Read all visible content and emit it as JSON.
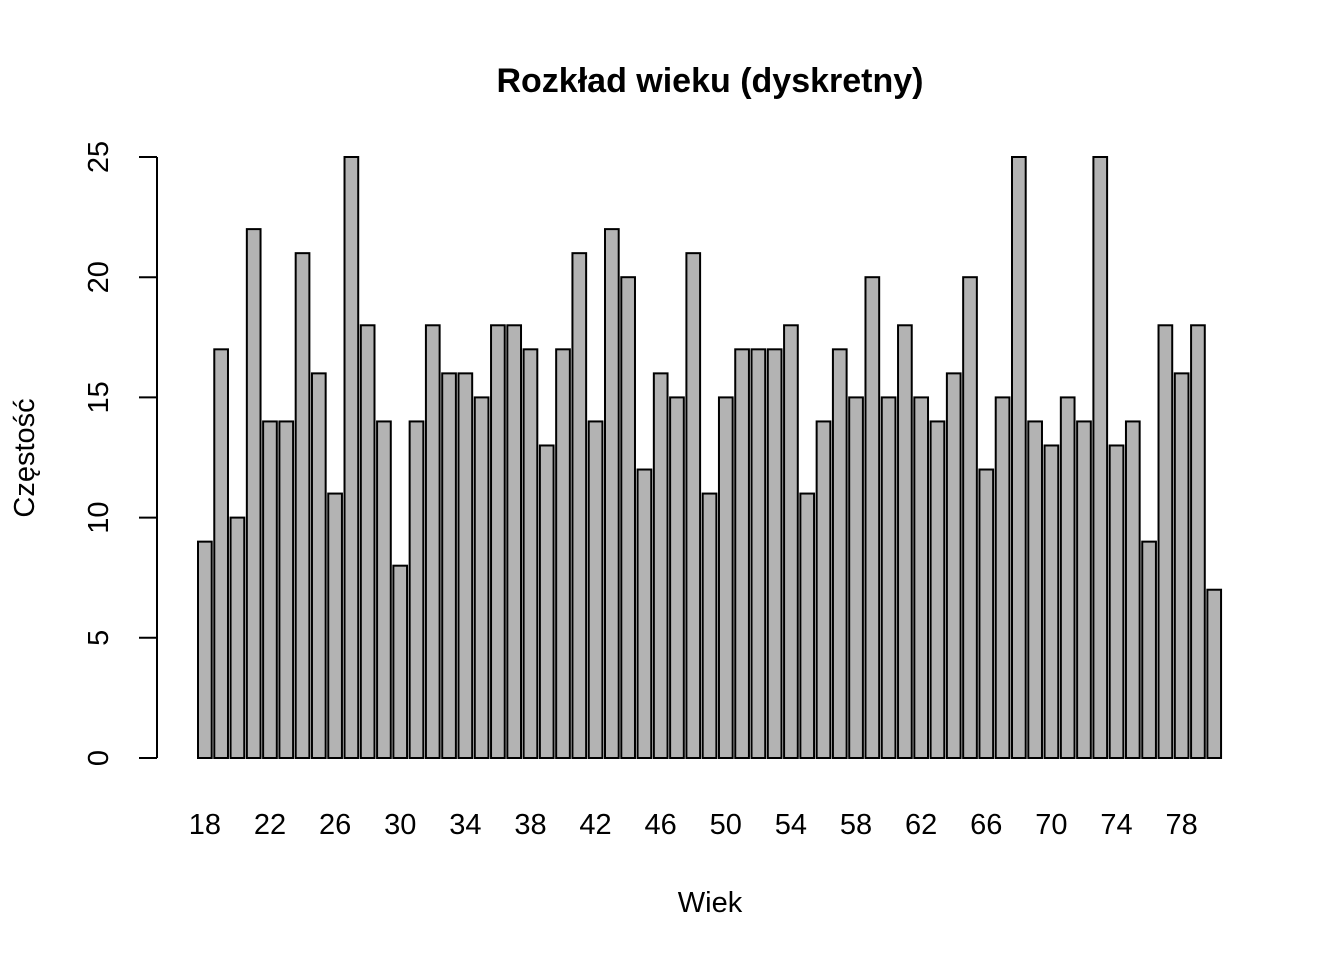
{
  "chart_data": {
    "type": "bar",
    "title": "Rozkład wieku (dyskretny)",
    "xlabel": "Wiek",
    "ylabel": "Częstość",
    "ylim": [
      0,
      25
    ],
    "yticks": [
      0,
      5,
      10,
      15,
      20,
      25
    ],
    "grid": false,
    "bar_color": "#b3b3b3",
    "border_color": "#000000",
    "categories": [
      18,
      19,
      20,
      21,
      22,
      23,
      24,
      25,
      26,
      27,
      28,
      29,
      30,
      31,
      32,
      33,
      34,
      35,
      36,
      37,
      38,
      39,
      40,
      41,
      42,
      43,
      44,
      45,
      46,
      47,
      48,
      49,
      50,
      51,
      52,
      53,
      54,
      55,
      56,
      57,
      58,
      59,
      60,
      61,
      62,
      63,
      64,
      65,
      66,
      67,
      68,
      69,
      70,
      71,
      72,
      73,
      74,
      75,
      76,
      77,
      78,
      79,
      80
    ],
    "values": [
      9,
      17,
      10,
      22,
      14,
      14,
      21,
      16,
      11,
      25,
      18,
      14,
      8,
      14,
      18,
      16,
      16,
      15,
      18,
      18,
      17,
      13,
      17,
      21,
      14,
      22,
      20,
      12,
      16,
      15,
      21,
      11,
      15,
      17,
      17,
      17,
      18,
      11,
      14,
      17,
      15,
      20,
      15,
      18,
      15,
      14,
      16,
      20,
      12,
      15,
      25,
      14,
      13,
      15,
      14,
      25,
      13,
      14,
      9,
      18,
      16,
      18,
      7
    ],
    "x_tick_labels": [
      "18",
      "22",
      "26",
      "30",
      "34",
      "38",
      "42",
      "46",
      "50",
      "54",
      "58",
      "62",
      "66",
      "70",
      "74",
      "78"
    ]
  }
}
